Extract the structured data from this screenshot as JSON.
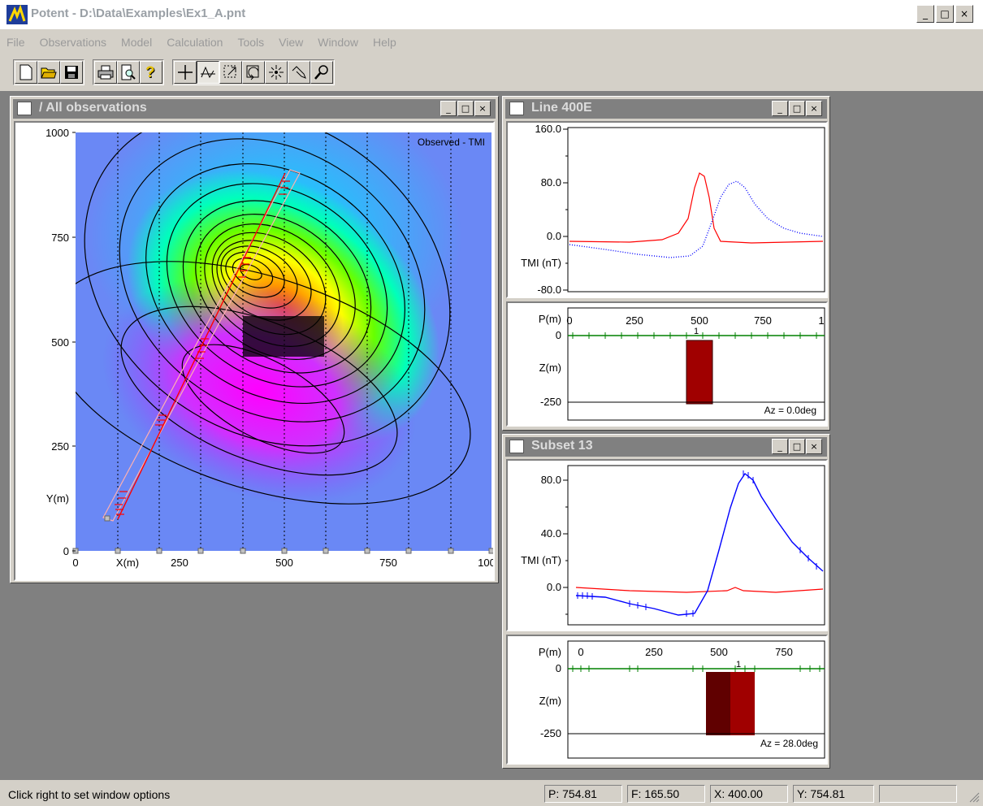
{
  "app": {
    "title": "Potent - D:\\Data\\Examples\\Ex1_A.pnt",
    "window_buttons": [
      "_",
      "□",
      "×"
    ]
  },
  "menu": [
    "File",
    "Observations",
    "Model",
    "Calculation",
    "Tools",
    "View",
    "Window",
    "Help"
  ],
  "toolbar": {
    "buttons": [
      "new-icon",
      "open-icon",
      "save-icon",
      "print-icon",
      "print-preview-icon",
      "help-icon",
      "crosshair-icon",
      "profile-icon",
      "zoom-box-icon",
      "rotate-icon",
      "center-icon",
      "drag-icon",
      "magnify-icon"
    ]
  },
  "windows": {
    "all_obs": {
      "title": "/ All observations",
      "map_label": "Observed - TMI",
      "x_ticks": [
        "0",
        "250",
        "500",
        "750",
        "100"
      ],
      "x_label": "X(m)",
      "y_ticks": [
        "1000",
        "750",
        "500",
        "250",
        "0"
      ],
      "y_label": "Y(m)"
    },
    "line400": {
      "title": "Line 400E",
      "y_ticks": [
        "160.0",
        "80.0",
        "0.0",
        "-80.0"
      ],
      "y_label": "TMI (nT)",
      "section_p_label": "P(m)",
      "section_z_label": "Z(m)",
      "section_p_ticks": [
        "0",
        "250",
        "500",
        "750",
        "1"
      ],
      "section_z_ticks": [
        "0",
        "-250"
      ],
      "azimuth": "Az = 0.0deg",
      "body_label": "1"
    },
    "subset13": {
      "title": "Subset 13",
      "y_ticks": [
        "80.0",
        "40.0",
        "0.0"
      ],
      "y_label": "TMI (nT)",
      "section_p_label": "P(m)",
      "section_z_label": "Z(m)",
      "section_p_ticks": [
        "0",
        "250",
        "500",
        "750"
      ],
      "section_z_ticks": [
        "0",
        "-250"
      ],
      "azimuth": "Az = 28.0deg",
      "body_label": "1"
    }
  },
  "status": {
    "message": "Click right to set window options",
    "p": "P: 754.81",
    "f": "F: 165.50",
    "x": "X: 400.00",
    "y": "Y: 754.81"
  },
  "colors": {
    "observed": "#0000ff",
    "calculated": "#ff0000",
    "stations": "#008000",
    "body": "#a00000"
  }
}
